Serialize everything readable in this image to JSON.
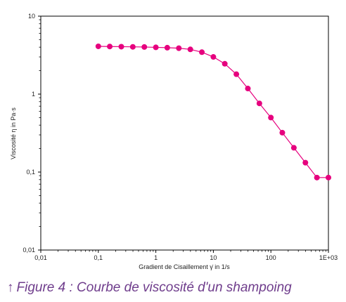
{
  "chart_data": {
    "type": "scatter",
    "xscale": "log",
    "yscale": "log",
    "xlim": [
      0.01,
      1000
    ],
    "ylim": [
      0.01,
      10
    ],
    "xticks": [
      "0,01",
      "0,1",
      "1",
      "10",
      "100",
      "1E+03"
    ],
    "yticks": [
      "0,01",
      "0,1",
      "1",
      "10"
    ],
    "xlabel": "Gradient de Cisaillement γ̇ in 1/s",
    "ylabel": "Viscosité  η  in Pa·s",
    "grid": false,
    "series": [
      {
        "color": "#e6007e",
        "x": [
          0.1,
          0.158,
          0.251,
          0.398,
          0.631,
          1.0,
          1.58,
          2.51,
          3.98,
          6.31,
          10.0,
          15.8,
          25.1,
          39.8,
          63.1,
          100,
          158,
          251,
          398,
          631,
          1000
        ],
        "y": [
          4.1,
          4.08,
          4.06,
          4.04,
          4.02,
          3.98,
          3.94,
          3.88,
          3.75,
          3.45,
          3.0,
          2.45,
          1.8,
          1.18,
          0.76,
          0.5,
          0.32,
          0.205,
          0.132,
          0.085,
          0.085
        ]
      }
    ]
  },
  "caption": {
    "arrow": "↑",
    "text": "Figure 4 : Courbe de viscosité d'un shampoing",
    "color": "#6f3d8c"
  }
}
